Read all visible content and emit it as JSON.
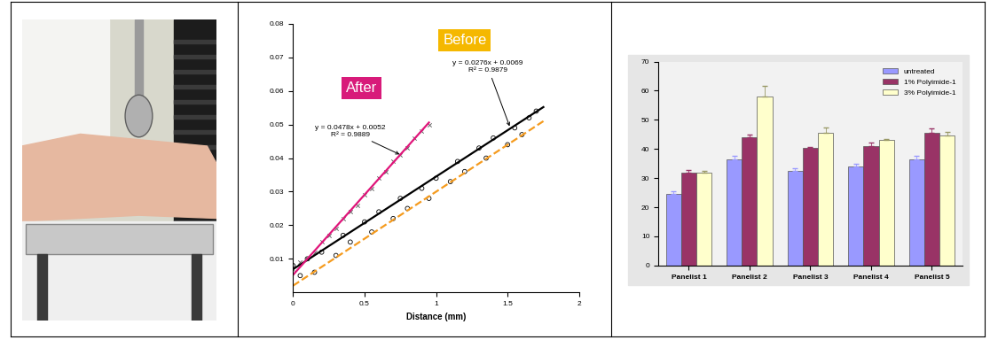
{
  "chart_data": [
    {
      "type": "scatter",
      "xlabel": "Distance (mm)",
      "xlim": [
        0,
        2
      ],
      "xticks": [
        0,
        0.5,
        1,
        1.5,
        2
      ],
      "ylim": [
        0,
        0.08
      ],
      "yticks": [
        0.01,
        0.02,
        0.03,
        0.04,
        0.05,
        0.06,
        0.07,
        0.08
      ],
      "series": [
        {
          "type": "scatter",
          "color": "#000000",
          "marker": "o",
          "x": [
            0.0,
            0.05,
            0.1,
            0.15,
            0.2,
            0.3,
            0.35,
            0.4,
            0.5,
            0.55,
            0.6,
            0.7,
            0.75,
            0.8,
            0.9,
            0.95,
            1.0,
            1.1,
            1.15,
            1.2,
            1.3,
            1.35,
            1.4,
            1.5,
            1.55,
            1.6,
            1.65,
            1.7
          ],
          "values": [
            0.008,
            0.005,
            0.01,
            0.006,
            0.012,
            0.011,
            0.017,
            0.015,
            0.021,
            0.018,
            0.024,
            0.022,
            0.028,
            0.025,
            0.031,
            0.028,
            0.034,
            0.033,
            0.039,
            0.036,
            0.043,
            0.04,
            0.046,
            0.044,
            0.049,
            0.047,
            0.052,
            0.054
          ]
        },
        {
          "type": "scatter",
          "color": "#555555",
          "marker": "x",
          "x": [
            0.0,
            0.05,
            0.1,
            0.15,
            0.2,
            0.25,
            0.3,
            0.35,
            0.4,
            0.45,
            0.5,
            0.55,
            0.6,
            0.65,
            0.7,
            0.75,
            0.8,
            0.85,
            0.9,
            0.95
          ],
          "values": [
            0.007,
            0.009,
            0.01,
            0.012,
            0.015,
            0.017,
            0.019,
            0.022,
            0.024,
            0.026,
            0.029,
            0.031,
            0.034,
            0.036,
            0.039,
            0.041,
            0.043,
            0.046,
            0.048,
            0.05
          ]
        },
        {
          "type": "line",
          "color": "#000000",
          "line_style": "solid",
          "x": [
            0,
            1.75
          ],
          "values": [
            0.0069,
            0.0552
          ]
        },
        {
          "type": "line",
          "color": "#e0157a",
          "line_style": "solid",
          "x": [
            0,
            0.95
          ],
          "values": [
            0.0052,
            0.0506
          ]
        },
        {
          "type": "line",
          "color": "#f59b1e",
          "line_style": "dashed",
          "x": [
            0,
            1.75
          ],
          "values": [
            0.002,
            0.051
          ]
        }
      ],
      "annotations": [
        {
          "text": "Before",
          "color": "#f5b800"
        },
        {
          "text": "After",
          "color": "#d81b7a"
        },
        {
          "text": "y = 0.0276x + 0.0069\nR² = 0.9879"
        },
        {
          "text": "y = 0.0478x + 0.0052\nR² = 0.9889"
        }
      ]
    },
    {
      "type": "bar",
      "categories": [
        "Panelist 1",
        "Panelist 2",
        "Panelist 3",
        "Panelist 4",
        "Panelist 5"
      ],
      "ylim": [
        0,
        70
      ],
      "yticks": [
        0,
        10,
        20,
        30,
        40,
        50,
        60,
        70
      ],
      "legend": "upper right",
      "series": [
        {
          "name": "untreated",
          "color": "#9999ff",
          "values": [
            24.5,
            36.5,
            32.5,
            34,
            36.5
          ],
          "errors": [
            1,
            1,
            0.8,
            0.8,
            1
          ]
        },
        {
          "name": "1% Polyimide-1",
          "color": "#993366",
          "values": [
            32,
            44,
            40.5,
            41,
            45.5
          ],
          "errors": [
            0.8,
            1,
            0.3,
            1.2,
            1.5
          ]
        },
        {
          "name": "3% Polyimide-1",
          "color": "#ffffcc",
          "values": [
            32,
            58,
            45.5,
            43,
            44.5
          ],
          "errors": [
            0.5,
            3.5,
            1.8,
            0.5,
            1.2
          ]
        }
      ]
    }
  ]
}
